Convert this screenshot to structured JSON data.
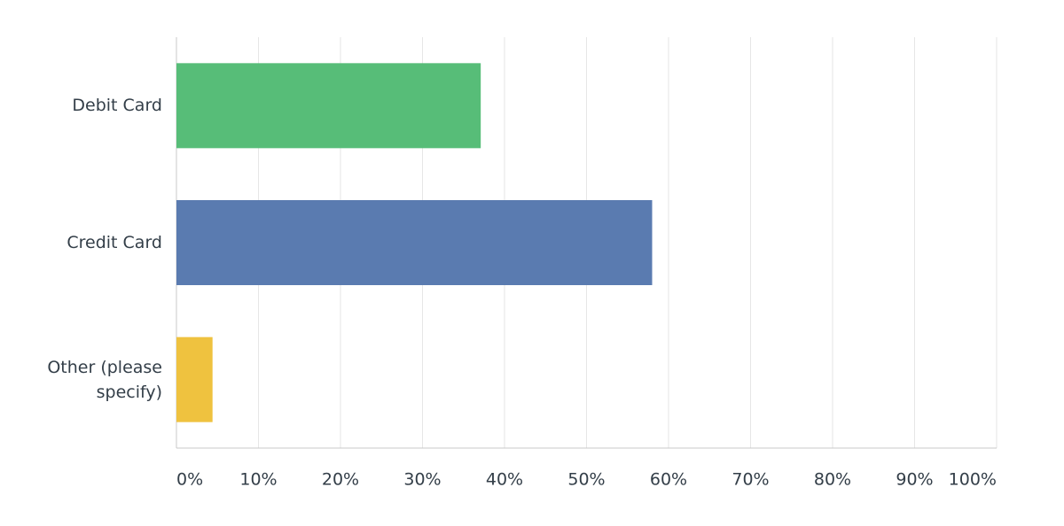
{
  "chart_data": {
    "type": "bar",
    "orientation": "horizontal",
    "categories": [
      "Debit Card",
      "Credit Card",
      "Other (please specify)"
    ],
    "values": [
      37.1,
      58,
      4.4
    ],
    "colors": [
      "#57bd78",
      "#5a7bb0",
      "#efc23f"
    ],
    "xlim": [
      0,
      100
    ],
    "xticks": [
      {
        "value": 0,
        "label": "0%"
      },
      {
        "value": 10,
        "label": "10%"
      },
      {
        "value": 20,
        "label": "20%"
      },
      {
        "value": 30,
        "label": "30%"
      },
      {
        "value": 40,
        "label": "40%"
      },
      {
        "value": 50,
        "label": "50%"
      },
      {
        "value": 60,
        "label": "60%"
      },
      {
        "value": 70,
        "label": "70%"
      },
      {
        "value": 80,
        "label": "80%"
      },
      {
        "value": 90,
        "label": "90%"
      },
      {
        "value": 100,
        "label": "100%"
      }
    ],
    "grid": true
  }
}
